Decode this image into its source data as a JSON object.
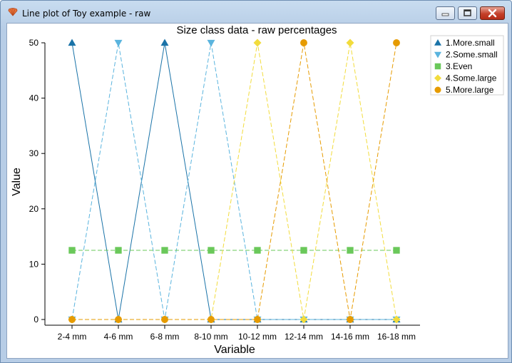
{
  "window": {
    "title": "Line plot of Toy example - raw"
  },
  "colors": {
    "series": [
      "#1a73a8",
      "#5ab4de",
      "#6ac85a",
      "#f2dc3c",
      "#e69b00"
    ]
  },
  "chart_data": {
    "type": "line",
    "title": "Size class data - raw percentages",
    "xlabel": "Variable",
    "ylabel": "Value",
    "categories": [
      "2-4 mm",
      "4-6 mm",
      "6-8 mm",
      "8-10 mm",
      "10-12 mm",
      "12-14 mm",
      "14-16 mm",
      "16-18 mm"
    ],
    "ylim": [
      0,
      50
    ],
    "yticks": [
      "0",
      "10",
      "20",
      "30",
      "40",
      "50"
    ],
    "grid": false,
    "legend_position": "top-right",
    "series": [
      {
        "name": "1.More.small",
        "marker": "triangle-up",
        "dash": "solid",
        "values": [
          50,
          0,
          50,
          0,
          0,
          0,
          0,
          0
        ]
      },
      {
        "name": "2.Some.small",
        "marker": "triangle-down",
        "dash": "dashed",
        "values": [
          0,
          50,
          0,
          50,
          0,
          0,
          0,
          0
        ]
      },
      {
        "name": "3.Even",
        "marker": "square",
        "dash": "dashed",
        "values": [
          12.5,
          12.5,
          12.5,
          12.5,
          12.5,
          12.5,
          12.5,
          12.5
        ]
      },
      {
        "name": "4.Some.large",
        "marker": "diamond",
        "dash": "dashed",
        "values": [
          0,
          0,
          0,
          0,
          50,
          0,
          50,
          0
        ]
      },
      {
        "name": "5.More.large",
        "marker": "circle",
        "dash": "dashed",
        "values": [
          0,
          0,
          0,
          0,
          0,
          50,
          0,
          50
        ]
      }
    ]
  }
}
